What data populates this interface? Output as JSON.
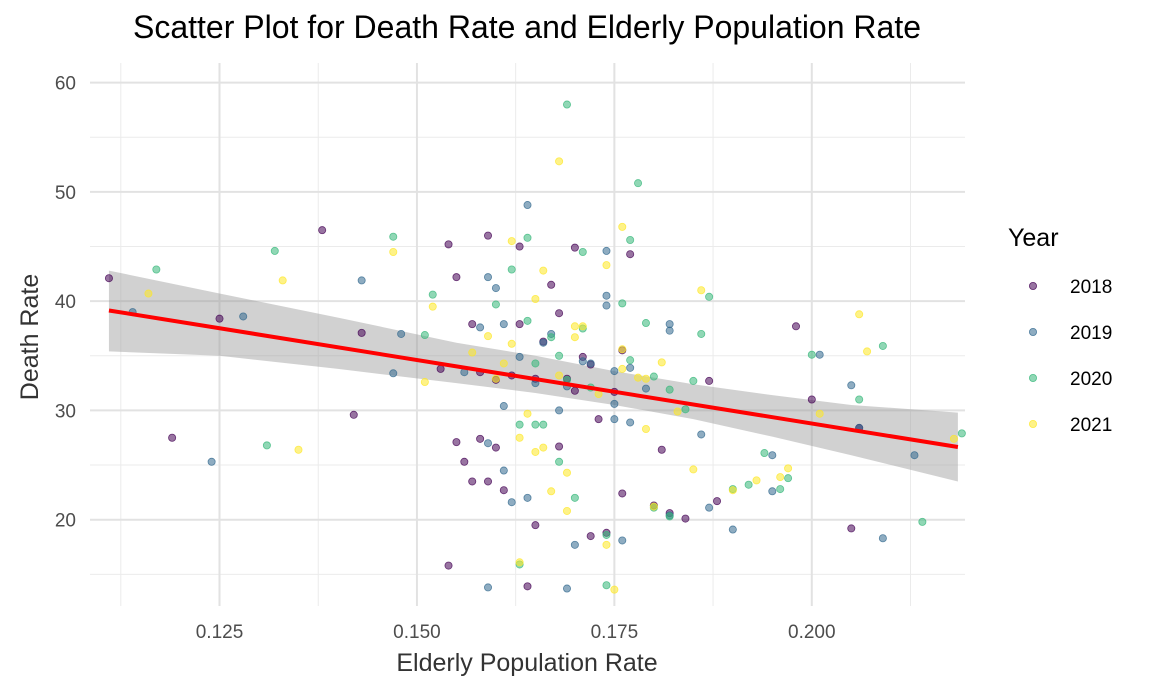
{
  "chart_data": {
    "type": "scatter",
    "title": "Scatter Plot for Death Rate and Elderly Population Rate",
    "xlabel": "Elderly Population Rate",
    "ylabel": "Death Rate",
    "xlim": [
      0.1086,
      0.2194
    ],
    "ylim": [
      12.1,
      61.8
    ],
    "x_ticks": [
      0.125,
      0.15,
      0.175,
      0.2
    ],
    "x_tick_labels": [
      "0.125",
      "0.150",
      "0.175",
      "0.200"
    ],
    "y_ticks": [
      20,
      30,
      40,
      50,
      60
    ],
    "y_tick_labels": [
      "20",
      "30",
      "40",
      "50",
      "60"
    ],
    "grid": true,
    "legend": {
      "title": "Year",
      "position": "right"
    },
    "series": [
      {
        "name": "2018",
        "color": "#440154",
        "points": [
          [
            0.111,
            42.1
          ],
          [
            0.119,
            27.5
          ],
          [
            0.125,
            38.4
          ],
          [
            0.138,
            46.5
          ],
          [
            0.142,
            29.6
          ],
          [
            0.143,
            37.1
          ],
          [
            0.153,
            33.8
          ],
          [
            0.154,
            45.2
          ],
          [
            0.154,
            15.8
          ],
          [
            0.155,
            42.2
          ],
          [
            0.155,
            27.1
          ],
          [
            0.156,
            25.3
          ],
          [
            0.157,
            23.5
          ],
          [
            0.157,
            37.9
          ],
          [
            0.158,
            27.4
          ],
          [
            0.158,
            33.5
          ],
          [
            0.159,
            46.0
          ],
          [
            0.159,
            23.5
          ],
          [
            0.16,
            26.6
          ],
          [
            0.16,
            32.8
          ],
          [
            0.161,
            22.7
          ],
          [
            0.162,
            33.2
          ],
          [
            0.163,
            45.0
          ],
          [
            0.163,
            37.9
          ],
          [
            0.164,
            13.9
          ],
          [
            0.165,
            19.5
          ],
          [
            0.165,
            32.9
          ],
          [
            0.166,
            36.3
          ],
          [
            0.167,
            41.5
          ],
          [
            0.168,
            38.9
          ],
          [
            0.168,
            26.7
          ],
          [
            0.169,
            32.9
          ],
          [
            0.17,
            44.9
          ],
          [
            0.17,
            31.8
          ],
          [
            0.171,
            34.9
          ],
          [
            0.172,
            34.2
          ],
          [
            0.172,
            18.5
          ],
          [
            0.173,
            29.2
          ],
          [
            0.174,
            18.8
          ],
          [
            0.175,
            31.7
          ],
          [
            0.176,
            35.5
          ],
          [
            0.176,
            22.4
          ],
          [
            0.177,
            44.3
          ],
          [
            0.18,
            21.3
          ],
          [
            0.181,
            26.4
          ],
          [
            0.182,
            20.6
          ],
          [
            0.184,
            20.1
          ],
          [
            0.187,
            32.7
          ],
          [
            0.188,
            21.7
          ],
          [
            0.198,
            37.7
          ],
          [
            0.2,
            31.0
          ],
          [
            0.205,
            19.2
          ],
          [
            0.206,
            28.4
          ]
        ]
      },
      {
        "name": "2019",
        "color": "#31688e",
        "points": [
          [
            0.114,
            39.0
          ],
          [
            0.124,
            25.3
          ],
          [
            0.128,
            38.6
          ],
          [
            0.143,
            41.9
          ],
          [
            0.147,
            33.4
          ],
          [
            0.148,
            37.0
          ],
          [
            0.156,
            33.5
          ],
          [
            0.158,
            37.6
          ],
          [
            0.159,
            42.2
          ],
          [
            0.159,
            27.0
          ],
          [
            0.159,
            13.8
          ],
          [
            0.16,
            41.2
          ],
          [
            0.161,
            30.4
          ],
          [
            0.161,
            24.5
          ],
          [
            0.161,
            37.9
          ],
          [
            0.162,
            21.6
          ],
          [
            0.163,
            34.9
          ],
          [
            0.164,
            48.8
          ],
          [
            0.164,
            22.0
          ],
          [
            0.165,
            32.5
          ],
          [
            0.166,
            36.2
          ],
          [
            0.167,
            37.0
          ],
          [
            0.168,
            30.0
          ],
          [
            0.169,
            13.7
          ],
          [
            0.169,
            32.2
          ],
          [
            0.17,
            17.7
          ],
          [
            0.171,
            34.5
          ],
          [
            0.172,
            34.3
          ],
          [
            0.174,
            44.6
          ],
          [
            0.174,
            40.5
          ],
          [
            0.174,
            39.6
          ],
          [
            0.175,
            33.6
          ],
          [
            0.175,
            29.2
          ],
          [
            0.175,
            30.6
          ],
          [
            0.176,
            18.1
          ],
          [
            0.177,
            33.9
          ],
          [
            0.177,
            28.9
          ],
          [
            0.179,
            32.0
          ],
          [
            0.182,
            37.9
          ],
          [
            0.182,
            37.3
          ],
          [
            0.182,
            20.4
          ],
          [
            0.186,
            27.8
          ],
          [
            0.187,
            21.1
          ],
          [
            0.19,
            19.1
          ],
          [
            0.195,
            25.9
          ],
          [
            0.195,
            22.6
          ],
          [
            0.201,
            35.1
          ],
          [
            0.205,
            32.3
          ],
          [
            0.206,
            28.4
          ],
          [
            0.209,
            18.3
          ],
          [
            0.213,
            25.9
          ]
        ]
      },
      {
        "name": "2020",
        "color": "#35b779",
        "points": [
          [
            0.117,
            42.9
          ],
          [
            0.131,
            26.8
          ],
          [
            0.132,
            44.6
          ],
          [
            0.147,
            45.9
          ],
          [
            0.151,
            36.9
          ],
          [
            0.152,
            40.6
          ],
          [
            0.16,
            39.7
          ],
          [
            0.162,
            42.9
          ],
          [
            0.163,
            28.7
          ],
          [
            0.163,
            15.9
          ],
          [
            0.164,
            45.8
          ],
          [
            0.164,
            38.2
          ],
          [
            0.165,
            34.3
          ],
          [
            0.165,
            28.7
          ],
          [
            0.166,
            28.7
          ],
          [
            0.167,
            36.7
          ],
          [
            0.168,
            35.0
          ],
          [
            0.168,
            25.3
          ],
          [
            0.169,
            58.0
          ],
          [
            0.169,
            32.8
          ],
          [
            0.17,
            22.0
          ],
          [
            0.171,
            44.5
          ],
          [
            0.171,
            37.5
          ],
          [
            0.172,
            32.1
          ],
          [
            0.174,
            18.6
          ],
          [
            0.174,
            14.0
          ],
          [
            0.176,
            39.8
          ],
          [
            0.177,
            45.6
          ],
          [
            0.177,
            34.6
          ],
          [
            0.178,
            50.8
          ],
          [
            0.179,
            38.0
          ],
          [
            0.18,
            33.1
          ],
          [
            0.18,
            21.1
          ],
          [
            0.182,
            31.9
          ],
          [
            0.182,
            20.3
          ],
          [
            0.184,
            30.1
          ],
          [
            0.185,
            32.7
          ],
          [
            0.186,
            37.0
          ],
          [
            0.187,
            40.4
          ],
          [
            0.19,
            22.8
          ],
          [
            0.192,
            23.2
          ],
          [
            0.194,
            26.1
          ],
          [
            0.196,
            22.8
          ],
          [
            0.197,
            23.8
          ],
          [
            0.2,
            35.1
          ],
          [
            0.206,
            31.0
          ],
          [
            0.209,
            35.9
          ],
          [
            0.214,
            19.8
          ],
          [
            0.219,
            27.9
          ]
        ]
      },
      {
        "name": "2021",
        "color": "#fde725",
        "points": [
          [
            0.116,
            40.7
          ],
          [
            0.133,
            41.9
          ],
          [
            0.135,
            26.4
          ],
          [
            0.147,
            44.5
          ],
          [
            0.151,
            32.6
          ],
          [
            0.152,
            39.5
          ],
          [
            0.157,
            35.3
          ],
          [
            0.159,
            36.8
          ],
          [
            0.16,
            32.9
          ],
          [
            0.161,
            34.3
          ],
          [
            0.162,
            36.1
          ],
          [
            0.162,
            45.5
          ],
          [
            0.163,
            27.5
          ],
          [
            0.163,
            16.1
          ],
          [
            0.164,
            29.7
          ],
          [
            0.165,
            40.2
          ],
          [
            0.165,
            26.2
          ],
          [
            0.166,
            42.8
          ],
          [
            0.166,
            26.6
          ],
          [
            0.167,
            22.6
          ],
          [
            0.168,
            52.8
          ],
          [
            0.168,
            33.2
          ],
          [
            0.169,
            20.8
          ],
          [
            0.169,
            24.3
          ],
          [
            0.17,
            37.7
          ],
          [
            0.17,
            36.7
          ],
          [
            0.171,
            37.7
          ],
          [
            0.173,
            31.5
          ],
          [
            0.174,
            43.3
          ],
          [
            0.174,
            17.7
          ],
          [
            0.175,
            13.6
          ],
          [
            0.176,
            46.8
          ],
          [
            0.176,
            35.6
          ],
          [
            0.176,
            33.8
          ],
          [
            0.178,
            33.0
          ],
          [
            0.179,
            32.9
          ],
          [
            0.179,
            28.3
          ],
          [
            0.18,
            21.2
          ],
          [
            0.181,
            34.4
          ],
          [
            0.183,
            29.9
          ],
          [
            0.185,
            24.6
          ],
          [
            0.186,
            41.0
          ],
          [
            0.19,
            22.7
          ],
          [
            0.193,
            23.6
          ],
          [
            0.196,
            23.9
          ],
          [
            0.197,
            24.7
          ],
          [
            0.201,
            29.7
          ],
          [
            0.206,
            38.8
          ],
          [
            0.207,
            35.4
          ],
          [
            0.218,
            27.4
          ]
        ]
      }
    ],
    "trend_line": {
      "color": "#ff0000",
      "x": [
        0.111,
        0.2185
      ],
      "y": [
        39.15,
        26.65
      ]
    },
    "confidence_band": {
      "color": "#999999",
      "x": [
        0.111,
        0.125,
        0.14,
        0.155,
        0.165,
        0.175,
        0.185,
        0.195,
        0.205,
        0.2185
      ],
      "lower": [
        35.4,
        35.0,
        33.8,
        32.5,
        31.6,
        30.5,
        29.2,
        27.6,
        25.9,
        23.5
      ],
      "upper": [
        42.8,
        40.7,
        38.5,
        36.2,
        35.0,
        33.6,
        32.4,
        31.4,
        30.5,
        29.8
      ]
    }
  }
}
